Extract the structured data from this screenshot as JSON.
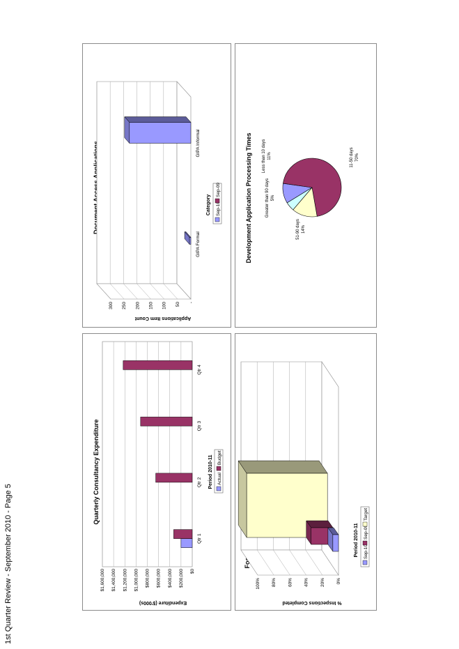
{
  "footer": "1st Quarter Review - September 2010 - Page 5",
  "charts": {
    "consultancy": {
      "title": "Quarterly Consultancy Expenditure",
      "ylabel": "Expenditure  ($'000s)",
      "xlabel": "Period 2010-11",
      "yticks": [
        "$0",
        "$200,000",
        "$400,000",
        "$600,000",
        "$800,000",
        "$1,000,000",
        "$1,200,000",
        "$1,400,000",
        "$1,600,000"
      ],
      "legend": [
        "Actual",
        "Budget"
      ]
    },
    "food": {
      "title": "Food Premises Inspections",
      "ylabel": "% Inspections Completed",
      "xlabel": "Period 2010-11",
      "yticks": [
        "0%",
        "20%",
        "40%",
        "60%",
        "80%",
        "100%"
      ],
      "legend": [
        "Sep-10",
        "Sep-09",
        "Target"
      ]
    },
    "documents": {
      "title": "Document Access Applications",
      "ylabel": "Applications Item Count",
      "xlabel": "Category",
      "yticks": [
        "-",
        "50",
        "100",
        "150",
        "200",
        "250",
        "300"
      ],
      "legend": [
        "Sep-10",
        "Sep-09"
      ]
    },
    "development": {
      "title": "Development Application Processing Times",
      "labels": [
        {
          "name": "Less than 10 days",
          "pct": "11%"
        },
        {
          "name": "11-50 days",
          "pct": "70%"
        },
        {
          "name": "51-90 days",
          "pct": "14%"
        },
        {
          "name": "Greater than 90 days",
          "pct": "5%"
        }
      ]
    }
  },
  "chart_data": [
    {
      "type": "bar",
      "title": "Quarterly Consultancy Expenditure",
      "xlabel": "Period 2010-11",
      "ylabel": "Expenditure  ($'000s)",
      "ylim": [
        0,
        1600000
      ],
      "categories": [
        "Qtr 1",
        "Qtr 2",
        "Qtr 3",
        "Qtr 4"
      ],
      "series": [
        {
          "name": "Actual",
          "values": [
            200000,
            0,
            0,
            0
          ]
        },
        {
          "name": "Budget",
          "values": [
            330000,
            650000,
            920000,
            1230000
          ]
        }
      ],
      "colors": {
        "Actual": "#9999ff",
        "Budget": "#993366"
      }
    },
    {
      "type": "bar",
      "title": "Food Premises Inspections",
      "xlabel": "Period 2010-11",
      "ylabel": "% Inspections Completed",
      "ylim": [
        0,
        1
      ],
      "categories": [
        ""
      ],
      "series": [
        {
          "name": "Sep-10",
          "values": [
            0.07
          ]
        },
        {
          "name": "Sep-09",
          "values": [
            0.27
          ]
        },
        {
          "name": "Target",
          "values": [
            1.0
          ]
        }
      ],
      "colors": {
        "Sep-10": "#9999ff",
        "Sep-09": "#993366",
        "Target": "#ffffcc"
      }
    },
    {
      "type": "bar",
      "title": "Document Access Applications",
      "xlabel": "Category",
      "ylabel": "Applications Item Count",
      "ylim": [
        0,
        300
      ],
      "categories": [
        "GIPA Formal",
        "GIPA Informal"
      ],
      "series": [
        {
          "name": "Sep-10",
          "values": [
            5,
            230
          ]
        },
        {
          "name": "Sep-09",
          "values": [
            0,
            0
          ]
        }
      ],
      "colors": {
        "Sep-10": "#9999ff",
        "Sep-09": "#993366"
      }
    },
    {
      "type": "pie",
      "title": "Development Application Processing Times",
      "slices": [
        {
          "label": "Less than 10 days",
          "value": 11,
          "color": "#9999ff"
        },
        {
          "label": "11-50 days",
          "value": 70,
          "color": "#993366"
        },
        {
          "label": "51-90 days",
          "value": 14,
          "color": "#ffffcc"
        },
        {
          "label": "Greater than 90 days",
          "value": 5,
          "color": "#ccffff"
        }
      ]
    }
  ]
}
